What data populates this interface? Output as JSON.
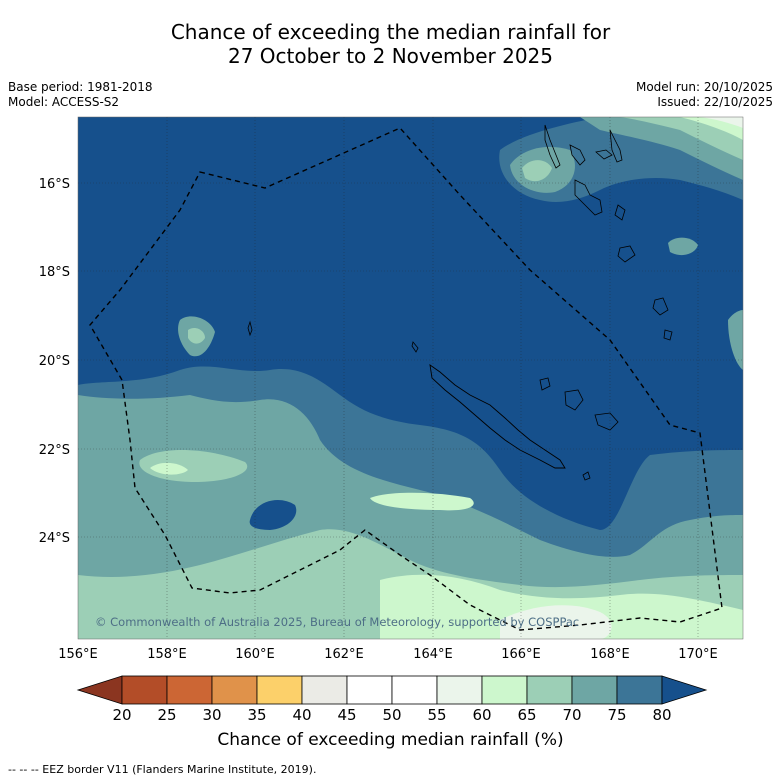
{
  "title_line1": "Chance of exceeding the median rainfall for",
  "title_line2": "27 October to 2 November 2025",
  "base_period": "Base period: 1981-2018",
  "model": "Model: ACCESS-S2",
  "model_run": "Model run: 20/10/2025",
  "issued": "Issued: 22/10/2025",
  "lat_labels": [
    "16°S",
    "18°S",
    "20°S",
    "22°S",
    "24°S"
  ],
  "lon_labels": [
    "156°E",
    "158°E",
    "160°E",
    "162°E",
    "164°E",
    "166°E",
    "168°E",
    "170°E"
  ],
  "copyright": "© Commonwealth of Australia 2025, Bureau of Meteorology, supported by COSPPac",
  "colorbar": {
    "ticks": [
      "20",
      "25",
      "30",
      "35",
      "40",
      "45",
      "50",
      "55",
      "60",
      "65",
      "70",
      "75",
      "80"
    ],
    "colors": [
      "#8b3520",
      "#b34d28",
      "#cc6634",
      "#e0924a",
      "#fcd06a",
      "#ebebe6",
      "#ffffff",
      "#ffffff",
      "#ebf5eb",
      "#cdf7cd",
      "#9ccfb6",
      "#6ea6a4",
      "#3c7597",
      "#16508c"
    ],
    "label": "Chance of exceeding median rainfall (%)"
  },
  "footer": "--  --  -- EEZ border V11 (Flanders Marine Institute, 2019)."
}
